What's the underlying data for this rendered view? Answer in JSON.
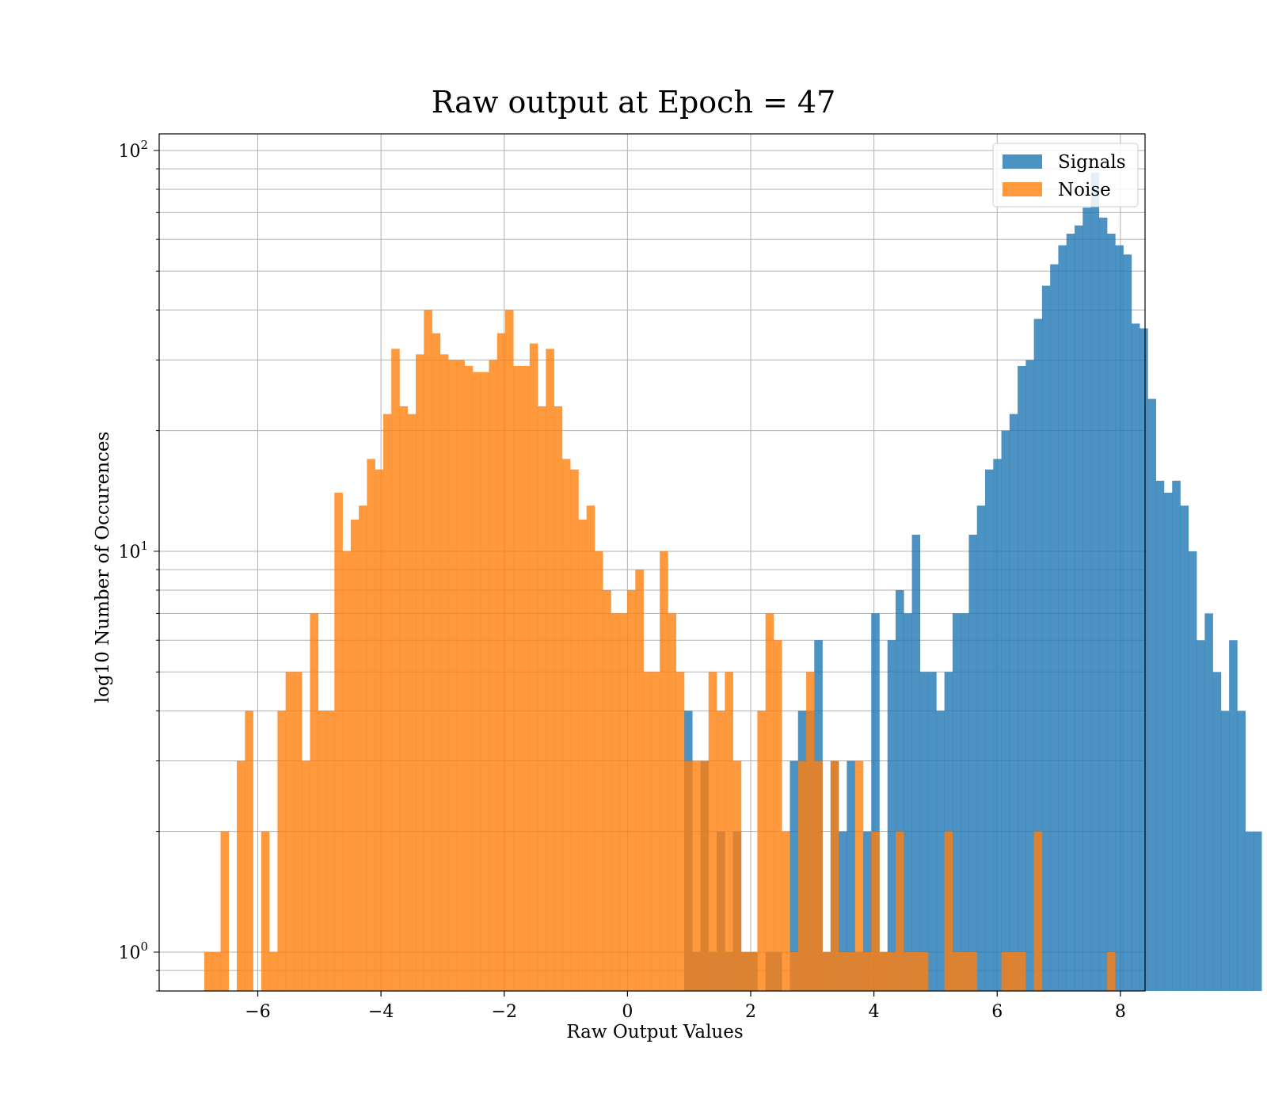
{
  "chart_data": {
    "type": "bar",
    "subtype": "overlapping-histogram",
    "title": "Raw output at Epoch = 47",
    "xlabel": "Raw Output Values",
    "ylabel": "log10 Number of Occurences",
    "xlim": [
      -7.6,
      8.4
    ],
    "ylim": [
      0.8,
      110
    ],
    "yscale": "log",
    "grid": true,
    "legend_position": "top-right",
    "xticks": [
      -6,
      -4,
      -2,
      0,
      2,
      4,
      6,
      8
    ],
    "xtick_labels": [
      "−6",
      "−4",
      "−2",
      "0",
      "2",
      "4",
      "6",
      "8"
    ],
    "yticks": [
      {
        "value": 1,
        "base": "10",
        "exp": "0"
      },
      {
        "value": 10,
        "base": "10",
        "exp": "1"
      },
      {
        "value": 100,
        "base": "10",
        "exp": "2"
      }
    ],
    "series": [
      {
        "name": "Signals",
        "color": "#1f77b4",
        "opacity": 0.8,
        "bin_start": -7.0,
        "bin_width": 0.132,
        "values": [
          0,
          0,
          0,
          0,
          0,
          0,
          0,
          0,
          0,
          0,
          0,
          0,
          0,
          0,
          0,
          0,
          0,
          0,
          0,
          0,
          0,
          0,
          0,
          0,
          0,
          0,
          0,
          0,
          0,
          0,
          0,
          0,
          0,
          0,
          0,
          0,
          0,
          0,
          0,
          0,
          0,
          0,
          0,
          0,
          0,
          0,
          0,
          0,
          0,
          0,
          0,
          0,
          0,
          0,
          0,
          0,
          0,
          0,
          0,
          0,
          4,
          1,
          3,
          1,
          2,
          1,
          2,
          1,
          1,
          0,
          1,
          1,
          0,
          3,
          4,
          4,
          6,
          1,
          3,
          2,
          3,
          1,
          2,
          7,
          1,
          6,
          8,
          7,
          11,
          5,
          5,
          4,
          5,
          7,
          7,
          11,
          13,
          16,
          17,
          20,
          22,
          29,
          30,
          38,
          46,
          52,
          58,
          62,
          65,
          72,
          88,
          68,
          62,
          58,
          55,
          37,
          36,
          24,
          15,
          14,
          15,
          13,
          10,
          6,
          7,
          5,
          4,
          6,
          4,
          2,
          2
        ],
        "offset_bins": 0
      },
      {
        "name": "Noise",
        "color": "#ff7f0e",
        "opacity": 0.8,
        "bin_start": -7.0,
        "bin_width": 0.132,
        "values": [
          0,
          1,
          1,
          2,
          0,
          3,
          4,
          0,
          2,
          1,
          4,
          5,
          5,
          3,
          7,
          4,
          4,
          14,
          10,
          12,
          13,
          17,
          16,
          22,
          32,
          23,
          22,
          31,
          40,
          35,
          31,
          30,
          30,
          29,
          28,
          28,
          30,
          35,
          40,
          29,
          29,
          33,
          23,
          32,
          23,
          17,
          16,
          12,
          13,
          10,
          8,
          7,
          7,
          8,
          9,
          5,
          5,
          10,
          7,
          5,
          3,
          3,
          3,
          5,
          4,
          5,
          3,
          1,
          1,
          4,
          7,
          6,
          2,
          1,
          3,
          5,
          3,
          1,
          3,
          1,
          1,
          3,
          1,
          2,
          1,
          1,
          2,
          1,
          1,
          1,
          0,
          0,
          2,
          1,
          1,
          1,
          0,
          0,
          0,
          1,
          1,
          1,
          0,
          2,
          0,
          0,
          0,
          0,
          0,
          0,
          0,
          0,
          1,
          0,
          0,
          0,
          0,
          0,
          0,
          0,
          0,
          0,
          0,
          0,
          0,
          0,
          0,
          0,
          0,
          0,
          0
        ],
        "offset_bins": 0
      }
    ]
  }
}
